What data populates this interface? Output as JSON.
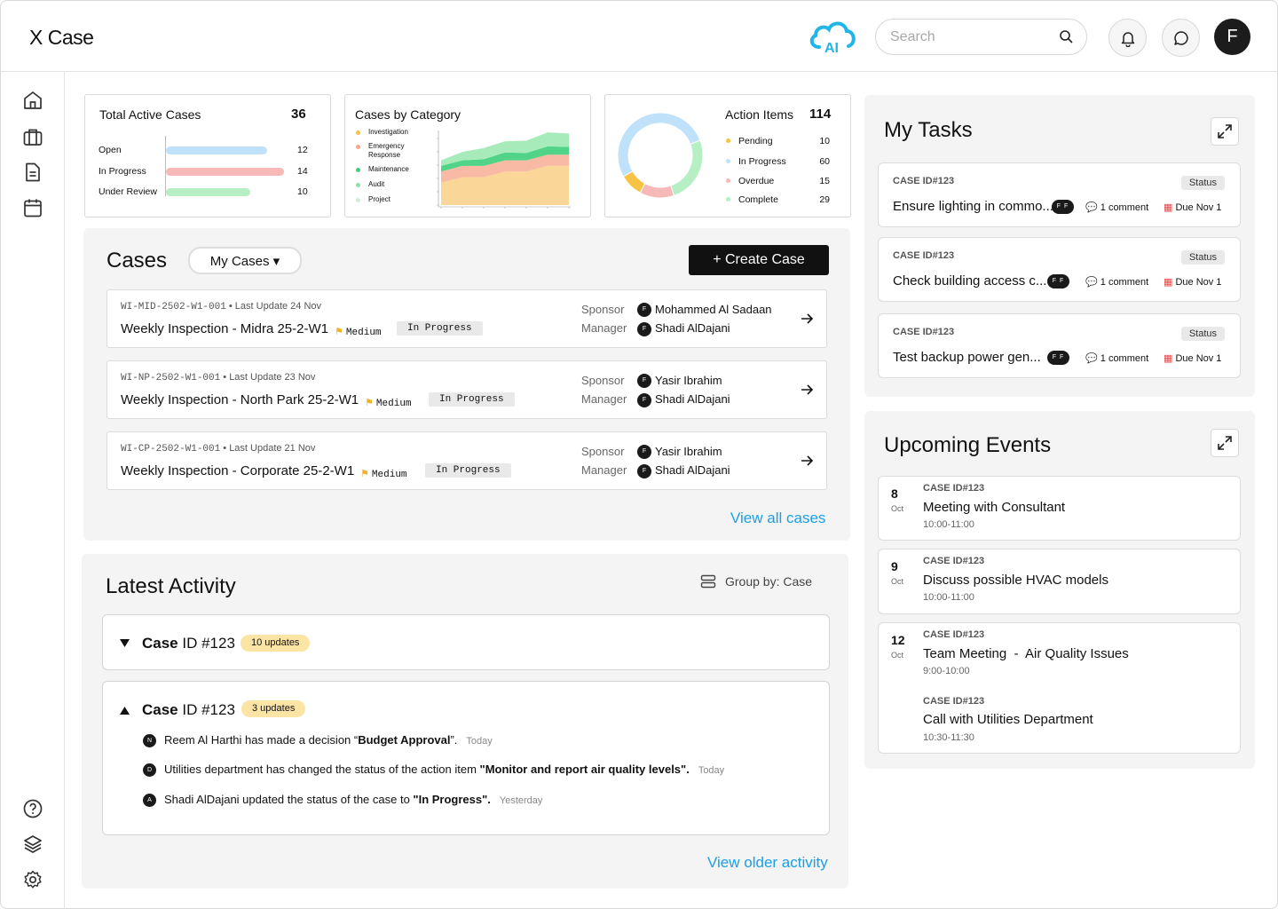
{
  "app": {
    "logo": "X Case",
    "ai_label": "AI"
  },
  "header": {
    "search_placeholder": "Search",
    "avatar_initial": "F"
  },
  "summary": {
    "total_active": {
      "title": "Total Active Cases",
      "total": "36",
      "rows": [
        {
          "label": "Open",
          "value": 12,
          "color": "#bfe1fa"
        },
        {
          "label": "In Progress",
          "value": 14,
          "color": "#f7b8b8"
        },
        {
          "label": "Under Review",
          "value": 10,
          "color": "#b7efc5"
        }
      ]
    },
    "by_category": {
      "title": "Cases by Category",
      "legend": [
        {
          "label": "Investigation",
          "color": "#f6c344"
        },
        {
          "label": "Emergency Response",
          "color": "#f7a787"
        },
        {
          "label": "Maintenance",
          "color": "#3ecf7a"
        },
        {
          "label": "Audit",
          "color": "#8ee3a4"
        },
        {
          "label": "Project",
          "color": "#c8f1cf"
        }
      ]
    },
    "action_items": {
      "title": "Action Items",
      "total": "114",
      "rows": [
        {
          "label": "Pending",
          "value": 10,
          "color": "#f6c344"
        },
        {
          "label": "In Progress",
          "value": 60,
          "color": "#bfe1fa"
        },
        {
          "label": "Overdue",
          "value": 15,
          "color": "#f7b8b8"
        },
        {
          "label": "Complete",
          "value": 29,
          "color": "#b7efc5"
        }
      ]
    }
  },
  "chart_data": [
    {
      "type": "bar",
      "title": "Total Active Cases",
      "categories": [
        "Open",
        "In Progress",
        "Under Review"
      ],
      "values": [
        12,
        14,
        10
      ]
    },
    {
      "type": "area",
      "title": "Cases by Category",
      "series": [
        {
          "name": "Investigation",
          "values": [
            4,
            5,
            5,
            6,
            6,
            7,
            7
          ]
        },
        {
          "name": "Emergency Response",
          "values": [
            2,
            2,
            2,
            2,
            2,
            2,
            2
          ]
        },
        {
          "name": "Maintenance",
          "values": [
            1,
            1,
            1.2,
            1.4,
            1.3,
            1.5,
            1.4
          ]
        },
        {
          "name": "Audit",
          "values": [
            1,
            1.5,
            2,
            2,
            2.2,
            2.5,
            2.4
          ]
        },
        {
          "name": "Project",
          "values": [
            0,
            0,
            0,
            0,
            0,
            0,
            0
          ]
        }
      ]
    },
    {
      "type": "pie",
      "title": "Action Items",
      "categories": [
        "Pending",
        "In Progress",
        "Overdue",
        "Complete"
      ],
      "values": [
        10,
        60,
        15,
        29
      ]
    }
  ],
  "cases": {
    "title": "Cases",
    "filter": "My Cases ▾",
    "create": "+ Create Case",
    "view_all": "View all cases",
    "sponsor_label": "Sponsor",
    "manager_label": "Manager",
    "rows": [
      {
        "id": "WI-MID-2502-W1-001",
        "update": "Last Update 24 Nov",
        "title": "Weekly Inspection - Midra 25-2-W1",
        "priority": "Medium",
        "status": "In Progress",
        "sponsor": "Mohammed Al Sadaan",
        "manager": "Shadi AlDajani"
      },
      {
        "id": "WI-NP-2502-W1-001",
        "update": "Last Update 23 Nov",
        "title": "Weekly Inspection - North Park 25-2-W1",
        "priority": "Medium",
        "status": "In Progress",
        "sponsor": "Yasir Ibrahim",
        "manager": "Shadi AlDajani"
      },
      {
        "id": "WI-CP-2502-W1-001",
        "update": "Last Update 21 Nov",
        "title": "Weekly Inspection - Corporate 25-2-W1",
        "priority": "Medium",
        "status": "In Progress",
        "sponsor": "Yasir Ibrahim",
        "manager": "Shadi AlDajani"
      }
    ]
  },
  "activity": {
    "title": "Latest Activity",
    "group_by": "Group by: Case",
    "view_older": "View older activity",
    "groups": [
      {
        "prefix": "Case",
        "id": " ID #123",
        "badge": "10 updates"
      },
      {
        "prefix": "Case",
        "id": " ID #123",
        "badge": "3 updates"
      }
    ],
    "items": [
      {
        "initial": "N",
        "pre": "Reem Al Harthi has made a decision “",
        "bold": "Budget Approval",
        "post": "”.",
        "when": "Today"
      },
      {
        "initial": "D",
        "pre": "Utilities department has changed the status of the action item ",
        "bold": "\"Monitor and report air quality levels\".",
        "post": "",
        "when": "Today"
      },
      {
        "initial": "A",
        "pre": "Shadi AlDajani updated the status of the case to ",
        "bold": "\"In Progress\".",
        "post": "",
        "when": "Yesterday"
      }
    ]
  },
  "tasks": {
    "title": "My Tasks",
    "items": [
      {
        "id": "CASE ID#123",
        "status": "Status",
        "title": "Ensure lighting in commo...",
        "avatars": "F F",
        "comments": "1 comment",
        "due": "Due Nov 1"
      },
      {
        "id": "CASE ID#123",
        "status": "Status",
        "title": "Check building access c...",
        "avatars": "F F",
        "comments": "1 comment",
        "due": "Due Nov 1"
      },
      {
        "id": "CASE ID#123",
        "status": "Status",
        "title": "Test backup power gen...",
        "avatars": "F F",
        "comments": "1 comment",
        "due": "Due Nov 1"
      }
    ]
  },
  "events": {
    "title": "Upcoming Events",
    "items": [
      {
        "day": "8",
        "month": "Oct",
        "id": "CASE ID#123",
        "title": "Meeting with Consultant",
        "time": "10:00-11:00"
      },
      {
        "day": "9",
        "month": "Oct",
        "id": "CASE ID#123",
        "title": "Discuss possible HVAC models",
        "time": "10:00-11:00"
      },
      {
        "day": "12",
        "month": "Oct",
        "id": "CASE ID#123",
        "title": "Team Meeting  -  Air Quality Issues",
        "time": "9:00-10:00",
        "id2": "CASE ID#123",
        "title2": "Call with Utilities Department",
        "time2": "10:30-11:30"
      }
    ]
  }
}
